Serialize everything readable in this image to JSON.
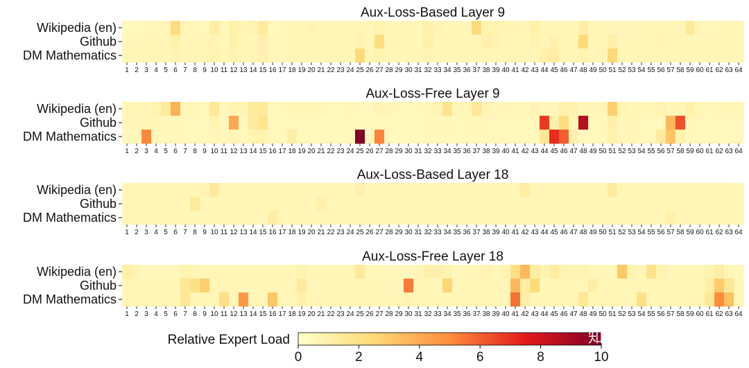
{
  "chart_data": {
    "type": "heatmap",
    "rows": [
      "Wikipedia (en)",
      "Github",
      "DM Mathematics"
    ],
    "x": [
      1,
      2,
      3,
      4,
      5,
      6,
      7,
      8,
      9,
      10,
      11,
      12,
      13,
      14,
      15,
      16,
      17,
      18,
      19,
      20,
      21,
      22,
      23,
      24,
      25,
      26,
      27,
      28,
      29,
      30,
      31,
      32,
      33,
      34,
      35,
      36,
      37,
      38,
      39,
      40,
      41,
      42,
      43,
      44,
      45,
      46,
      47,
      48,
      49,
      50,
      51,
      52,
      53,
      54,
      55,
      56,
      57,
      58,
      59,
      60,
      61,
      62,
      63,
      64
    ],
    "vmin": 0,
    "vmax": 10,
    "colorbar": {
      "label": "Relative Expert Load",
      "ticks": [
        "0",
        "2",
        "4",
        "6",
        "8",
        "10"
      ]
    },
    "panels": [
      {
        "title": "Aux-Loss-Based Layer 9",
        "values": [
          [
            0.4,
            0.5,
            0.5,
            0.6,
            0.6,
            2.3,
            0.6,
            0.6,
            0.5,
            1.2,
            0.5,
            1.0,
            0.7,
            0.8,
            1.3,
            0.5,
            0.5,
            0.6,
            0.6,
            0.7,
            0.6,
            0.6,
            0.6,
            0.6,
            0.6,
            0.6,
            0.8,
            0.6,
            0.6,
            0.6,
            0.6,
            0.9,
            0.7,
            0.6,
            0.6,
            0.6,
            2.3,
            0.8,
            0.8,
            0.7,
            0.7,
            0.6,
            1.0,
            0.6,
            0.6,
            0.6,
            0.6,
            1.1,
            0.6,
            0.6,
            0.6,
            0.5,
            0.6,
            0.6,
            0.6,
            0.6,
            0.6,
            0.6,
            1.4,
            0.6,
            0.5,
            0.6,
            0.6,
            0.6
          ],
          [
            0.5,
            0.6,
            0.6,
            0.6,
            0.6,
            1.0,
            0.6,
            0.6,
            0.6,
            0.7,
            0.6,
            1.0,
            0.6,
            0.6,
            0.9,
            0.6,
            0.5,
            0.6,
            0.6,
            0.6,
            0.6,
            0.6,
            0.6,
            0.6,
            0.8,
            0.6,
            2.2,
            0.6,
            0.6,
            0.6,
            0.6,
            1.0,
            0.6,
            0.6,
            0.6,
            0.6,
            0.6,
            0.9,
            0.7,
            0.6,
            0.6,
            0.6,
            0.8,
            0.6,
            0.9,
            0.6,
            0.6,
            2.4,
            0.6,
            0.6,
            1.0,
            0.6,
            0.6,
            0.6,
            0.6,
            0.7,
            0.6,
            0.6,
            0.6,
            0.6,
            0.6,
            0.6,
            0.6,
            0.6
          ],
          [
            0.6,
            0.6,
            0.6,
            0.6,
            0.6,
            0.7,
            0.6,
            0.6,
            0.6,
            0.8,
            0.6,
            0.8,
            0.6,
            0.6,
            0.9,
            0.6,
            0.5,
            0.6,
            0.6,
            0.6,
            0.6,
            0.6,
            0.6,
            0.6,
            2.4,
            0.6,
            0.8,
            0.6,
            0.6,
            0.6,
            0.6,
            0.7,
            0.6,
            0.6,
            0.6,
            0.6,
            0.6,
            0.6,
            0.6,
            0.6,
            0.6,
            0.6,
            0.6,
            1.0,
            1.2,
            0.6,
            0.6,
            0.8,
            0.6,
            0.6,
            2.5,
            0.6,
            0.6,
            0.6,
            0.6,
            0.6,
            0.6,
            0.6,
            0.6,
            0.6,
            0.6,
            0.6,
            0.6,
            0.6
          ]
        ]
      },
      {
        "title": "Aux-Loss-Free Layer 9",
        "values": [
          [
            0.6,
            0.6,
            0.6,
            0.8,
            1.4,
            3.8,
            0.6,
            0.6,
            0.5,
            1.5,
            0.5,
            0.8,
            0.7,
            1.4,
            1.4,
            0.5,
            0.5,
            0.6,
            0.6,
            0.6,
            0.6,
            0.5,
            0.5,
            0.6,
            0.5,
            0.5,
            0.7,
            0.6,
            0.5,
            0.5,
            0.5,
            0.6,
            0.7,
            1.8,
            0.6,
            0.6,
            1.5,
            0.7,
            0.5,
            0.6,
            0.6,
            0.5,
            0.7,
            0.5,
            0.6,
            0.9,
            0.8,
            0.6,
            0.6,
            0.6,
            2.8,
            0.7,
            0.6,
            0.6,
            0.6,
            0.8,
            0.6,
            0.6,
            1.0,
            0.6,
            0.5,
            0.6,
            0.6,
            0.6
          ],
          [
            0.5,
            0.6,
            0.6,
            0.6,
            0.5,
            0.6,
            0.5,
            0.5,
            0.5,
            0.8,
            0.5,
            4.1,
            0.5,
            1.3,
            1.8,
            0.5,
            0.4,
            0.5,
            0.5,
            0.5,
            0.4,
            0.4,
            0.4,
            0.5,
            0.4,
            0.4,
            0.5,
            0.4,
            0.4,
            0.4,
            0.4,
            0.6,
            0.5,
            0.6,
            0.5,
            0.5,
            0.6,
            0.5,
            0.5,
            0.5,
            0.5,
            0.5,
            0.5,
            6.8,
            0.9,
            2.3,
            0.6,
            8.6,
            0.5,
            0.5,
            1.0,
            0.6,
            0.6,
            0.5,
            0.5,
            0.5,
            3.6,
            6.3,
            0.6,
            0.5,
            0.4,
            0.5,
            0.5,
            0.5
          ],
          [
            0.5,
            0.6,
            5.1,
            0.6,
            0.5,
            0.6,
            0.5,
            0.5,
            0.5,
            0.6,
            0.5,
            0.7,
            0.5,
            0.7,
            0.8,
            0.5,
            0.5,
            1.1,
            0.5,
            0.5,
            0.5,
            0.5,
            0.4,
            0.5,
            9.9,
            0.5,
            5.2,
            0.5,
            0.4,
            0.4,
            0.4,
            0.5,
            0.5,
            0.5,
            0.5,
            0.5,
            0.5,
            0.5,
            0.5,
            0.5,
            0.5,
            0.5,
            0.5,
            1.5,
            7.1,
            6.0,
            0.9,
            0.5,
            0.5,
            0.5,
            0.8,
            0.6,
            0.6,
            0.5,
            0.5,
            1.3,
            3.2,
            0.8,
            0.5,
            0.5,
            0.5,
            0.5,
            0.5,
            0.5
          ]
        ]
      },
      {
        "title": "Aux-Loss-Based Layer 18",
        "values": [
          [
            0.6,
            0.6,
            0.6,
            0.6,
            0.6,
            0.6,
            0.6,
            0.6,
            0.7,
            1.4,
            0.6,
            0.6,
            0.6,
            0.6,
            0.6,
            0.6,
            0.6,
            0.6,
            0.6,
            0.6,
            0.6,
            0.6,
            0.6,
            0.6,
            0.9,
            0.6,
            0.6,
            0.6,
            0.6,
            0.6,
            0.6,
            0.6,
            0.6,
            0.6,
            0.6,
            0.6,
            0.6,
            0.6,
            0.6,
            0.6,
            0.6,
            1.2,
            0.6,
            0.6,
            0.6,
            0.6,
            0.6,
            0.6,
            0.6,
            0.6,
            1.3,
            0.6,
            0.6,
            0.6,
            0.6,
            0.6,
            0.6,
            0.6,
            0.6,
            0.6,
            0.6,
            0.6,
            0.6,
            0.6
          ],
          [
            0.6,
            0.6,
            0.6,
            0.6,
            0.6,
            0.6,
            0.6,
            1.4,
            0.6,
            0.6,
            0.6,
            0.6,
            0.6,
            0.6,
            0.6,
            0.6,
            0.6,
            0.6,
            0.6,
            0.6,
            1.0,
            0.6,
            0.6,
            0.6,
            0.6,
            0.6,
            0.6,
            0.6,
            0.6,
            0.6,
            0.6,
            0.6,
            0.6,
            0.6,
            0.6,
            0.6,
            0.6,
            0.6,
            0.6,
            0.6,
            0.6,
            0.6,
            0.6,
            0.6,
            0.6,
            0.6,
            0.6,
            0.6,
            0.6,
            0.6,
            0.6,
            0.6,
            0.6,
            0.6,
            0.6,
            0.6,
            0.6,
            0.6,
            0.6,
            0.6,
            0.6,
            0.6,
            0.6,
            0.6
          ],
          [
            0.6,
            0.6,
            0.6,
            0.6,
            0.6,
            0.6,
            0.6,
            0.6,
            0.6,
            0.6,
            0.6,
            0.6,
            0.6,
            0.6,
            0.6,
            1.2,
            0.6,
            0.6,
            0.6,
            0.6,
            0.6,
            0.6,
            0.6,
            0.6,
            0.6,
            0.6,
            0.6,
            0.6,
            0.6,
            0.6,
            0.6,
            0.6,
            0.6,
            0.6,
            0.6,
            0.6,
            0.6,
            0.6,
            0.6,
            0.6,
            0.6,
            0.6,
            0.6,
            0.6,
            0.6,
            0.6,
            0.6,
            0.6,
            0.6,
            0.6,
            0.6,
            0.6,
            0.6,
            0.6,
            0.6,
            0.6,
            1.0,
            0.6,
            0.6,
            0.6,
            0.6,
            0.6,
            0.6,
            0.6
          ]
        ]
      },
      {
        "title": "Aux-Loss-Free Layer 18",
        "values": [
          [
            1.1,
            0.7,
            0.5,
            0.5,
            0.5,
            0.5,
            0.8,
            0.7,
            0.6,
            0.6,
            0.6,
            0.6,
            0.6,
            0.6,
            0.6,
            0.6,
            0.6,
            0.6,
            0.8,
            0.6,
            0.6,
            0.6,
            0.6,
            0.6,
            1.4,
            0.6,
            0.5,
            0.5,
            0.5,
            0.5,
            0.6,
            0.9,
            0.9,
            0.8,
            0.5,
            0.5,
            0.6,
            0.7,
            0.6,
            0.7,
            2.1,
            3.6,
            1.2,
            0.8,
            1.2,
            0.8,
            0.7,
            0.7,
            0.6,
            0.6,
            0.6,
            3.1,
            0.8,
            0.6,
            1.9,
            0.8,
            0.6,
            0.6,
            0.6,
            0.6,
            0.8,
            1.2,
            0.6,
            0.5
          ],
          [
            0.6,
            0.6,
            0.6,
            0.6,
            0.6,
            0.6,
            1.6,
            2.0,
            2.8,
            0.6,
            0.6,
            0.6,
            0.6,
            0.6,
            0.6,
            0.6,
            0.6,
            0.6,
            1.4,
            0.6,
            0.6,
            0.6,
            0.6,
            0.6,
            0.6,
            0.6,
            0.6,
            0.6,
            0.5,
            5.4,
            0.6,
            0.6,
            0.6,
            2.6,
            0.6,
            0.6,
            0.6,
            0.6,
            0.6,
            0.6,
            3.6,
            1.2,
            2.4,
            0.6,
            0.6,
            0.6,
            0.6,
            0.6,
            1.1,
            0.6,
            0.6,
            0.6,
            0.6,
            0.6,
            0.6,
            0.6,
            0.6,
            0.6,
            0.6,
            0.6,
            1.1,
            3.0,
            1.6,
            0.6
          ],
          [
            0.6,
            0.6,
            0.6,
            0.6,
            0.6,
            0.6,
            1.5,
            0.6,
            0.6,
            0.6,
            2.0,
            0.6,
            4.6,
            0.6,
            0.6,
            3.1,
            0.6,
            0.6,
            1.0,
            0.6,
            0.6,
            0.6,
            0.6,
            0.6,
            0.6,
            0.6,
            0.6,
            0.6,
            0.6,
            0.8,
            0.6,
            0.6,
            0.6,
            0.6,
            0.6,
            0.6,
            0.6,
            0.6,
            0.6,
            0.6,
            5.6,
            1.1,
            0.6,
            0.6,
            0.6,
            0.6,
            0.6,
            1.6,
            0.6,
            0.6,
            0.6,
            0.6,
            0.6,
            2.0,
            0.6,
            0.6,
            0.6,
            0.6,
            0.6,
            0.6,
            1.5,
            5.0,
            3.3,
            0.6
          ]
        ]
      }
    ]
  },
  "watermark": "知乎 @吕阿华"
}
